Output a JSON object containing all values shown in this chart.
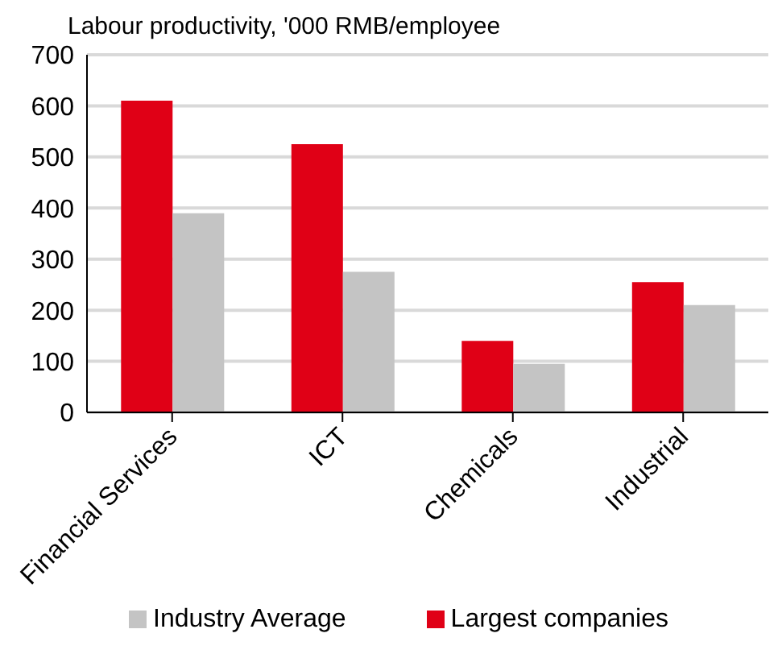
{
  "chart_data": {
    "type": "bar",
    "title": "Labour productivity, '000 RMB/employee",
    "categories": [
      "Financial Services",
      "ICT",
      "Chemicals",
      "Industrial"
    ],
    "series": [
      {
        "name": "Largest companies",
        "color": "#e00016",
        "values": [
          610,
          525,
          140,
          255
        ]
      },
      {
        "name": "Industry Average",
        "color": "#c4c4c4",
        "values": [
          390,
          275,
          95,
          210
        ]
      }
    ],
    "ylim": [
      0,
      700
    ],
    "yticks": [
      0,
      100,
      200,
      300,
      400,
      500,
      600,
      700
    ],
    "grid": "y",
    "legend": "bottom"
  }
}
